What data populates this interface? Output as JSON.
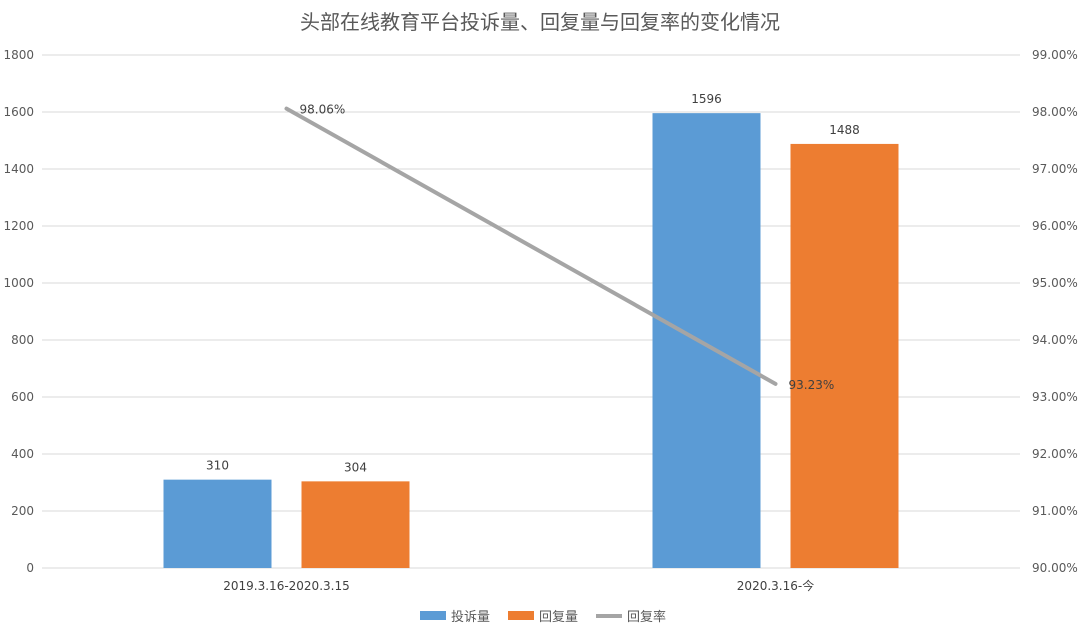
{
  "chart_data": {
    "type": "bar",
    "title": "头部在线教育平台投诉量、回复量与回复率的变化情况",
    "categories": [
      "2019.3.16-2020.3.15",
      "2020.3.16-今"
    ],
    "series": [
      {
        "name": "投诉量",
        "type": "bar",
        "axis": "left",
        "color": "#5b9bd5",
        "values": [
          310,
          1596
        ],
        "labels": [
          "310",
          "1596"
        ]
      },
      {
        "name": "回复量",
        "type": "bar",
        "axis": "left",
        "color": "#ed7d31",
        "values": [
          304,
          1488
        ],
        "labels": [
          "304",
          "1488"
        ]
      },
      {
        "name": "回复率",
        "type": "line",
        "axis": "right",
        "color": "#a5a5a5",
        "values": [
          98.06,
          93.23
        ],
        "labels": [
          "98.06%",
          "93.23%"
        ]
      }
    ],
    "y_left": {
      "min": 0,
      "max": 1800,
      "step": 200,
      "ticks": [
        "0",
        "200",
        "400",
        "600",
        "800",
        "1000",
        "1200",
        "1400",
        "1600",
        "1800"
      ]
    },
    "y_right": {
      "min": 90,
      "max": 99,
      "step": 1,
      "ticks": [
        "90.00%",
        "91.00%",
        "92.00%",
        "93.00%",
        "94.00%",
        "95.00%",
        "96.00%",
        "97.00%",
        "98.00%",
        "99.00%"
      ]
    },
    "grid": true,
    "legend_position": "bottom"
  }
}
